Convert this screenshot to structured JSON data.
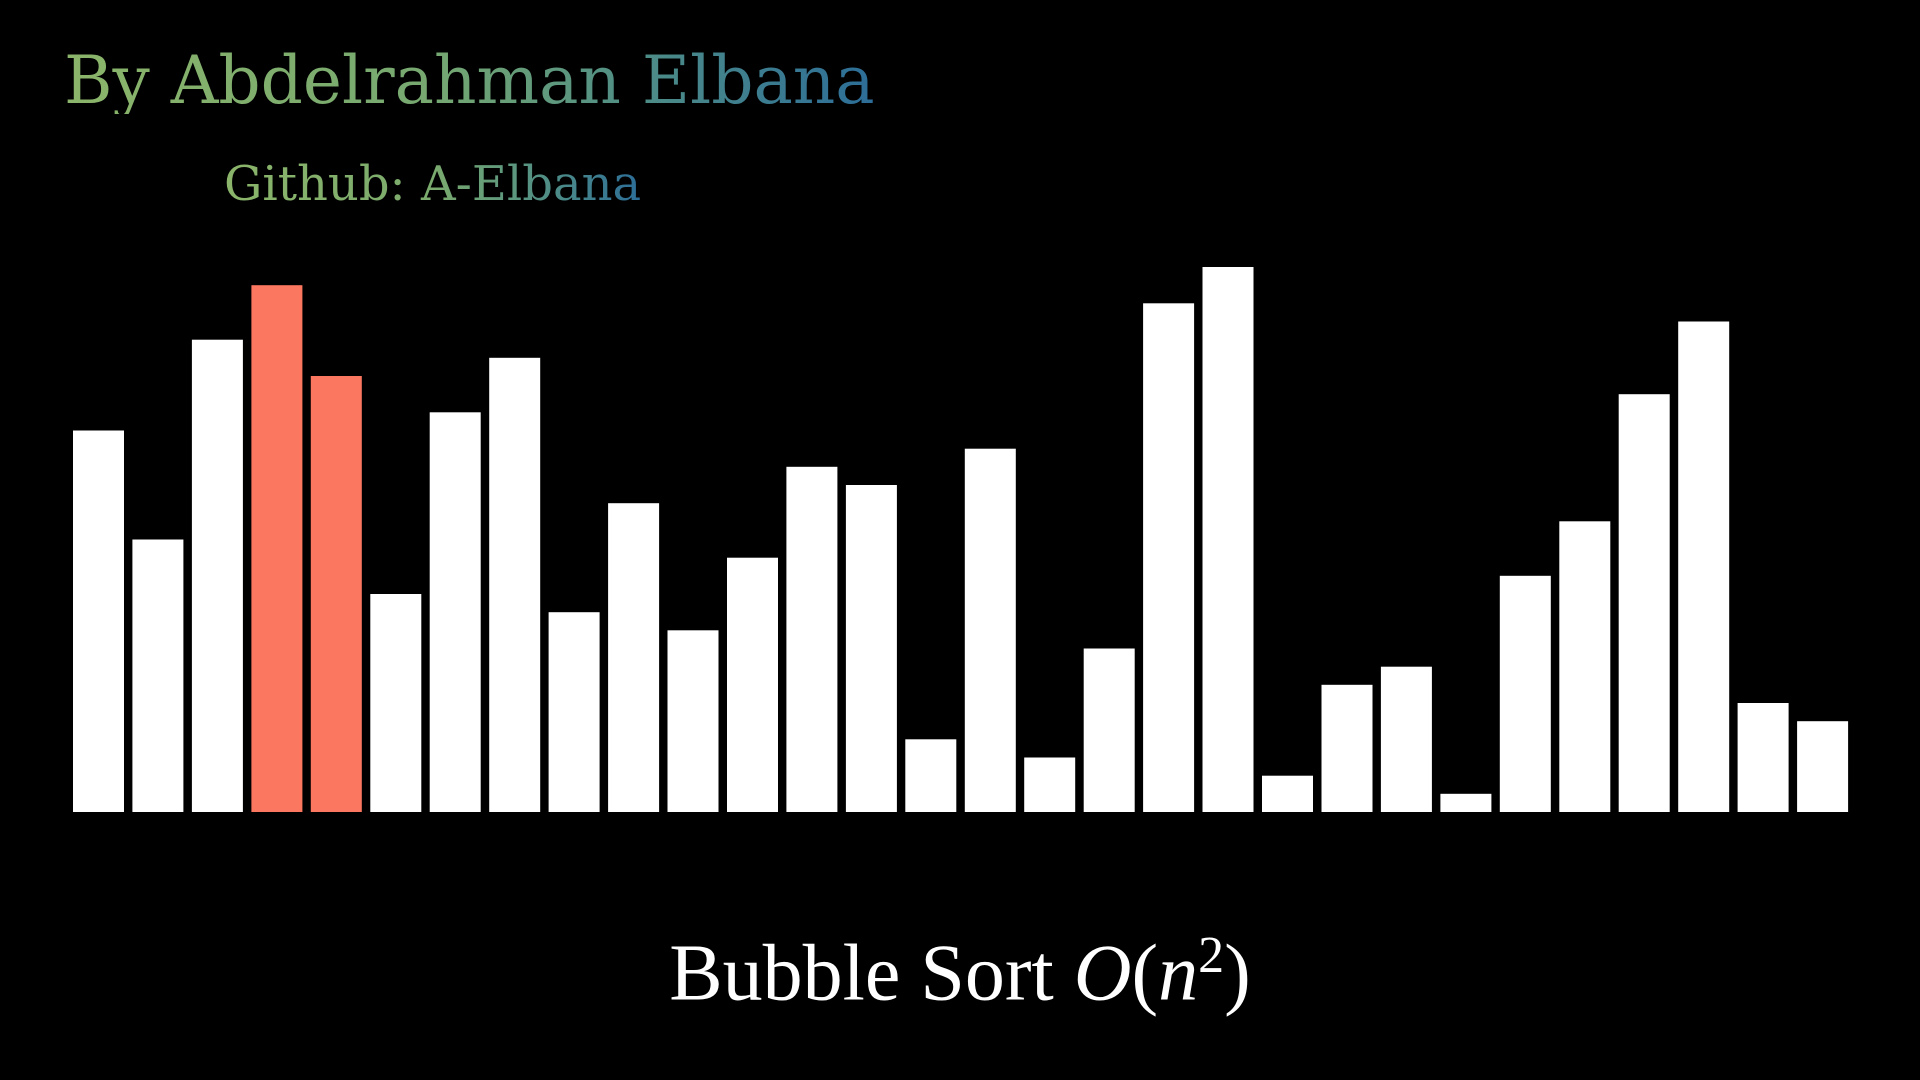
{
  "header": {
    "author": "By Abdelrahman Elbana",
    "github": "Github: A-Elbana"
  },
  "caption": {
    "name": "Bubble Sort",
    "complexity_O": "O",
    "complexity_open": "(",
    "complexity_n": "n",
    "complexity_exp": "2",
    "complexity_close": ")"
  },
  "colors": {
    "background": "#000000",
    "bar": "#ffffff",
    "highlight": "#fc7760",
    "title_gradient_start": "#8bb56a",
    "title_gradient_end": "#2c6d98"
  },
  "chart_data": {
    "type": "bar",
    "values": [
      21,
      15,
      26,
      29,
      24,
      12,
      22,
      25,
      11,
      17,
      10,
      14,
      19,
      18,
      4,
      20,
      3,
      9,
      28,
      30,
      2,
      7,
      8,
      1,
      13,
      16,
      23,
      27,
      6,
      5
    ],
    "highlighted_indices": [
      3,
      4
    ],
    "ylim": [
      0,
      30
    ]
  }
}
